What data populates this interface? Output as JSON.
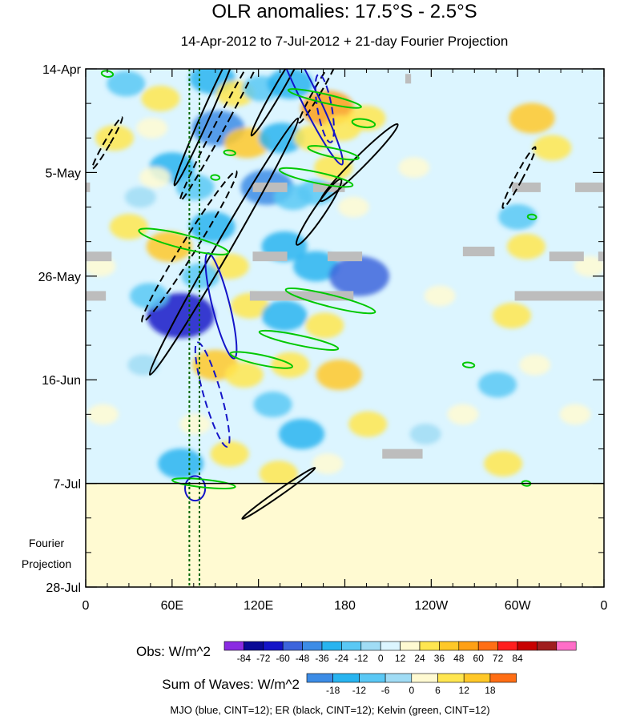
{
  "chart_data": {
    "type": "heatmap",
    "title": "OLR anomalies: 17.5°S - 2.5°S",
    "subtitle": "14-Apr-2012 to 7-Jul-2012 + 21-day Fourier Projection",
    "x_ticks": [
      "0",
      "60E",
      "120E",
      "180",
      "120W",
      "60W",
      "0"
    ],
    "x_tick_values": [
      0,
      60,
      120,
      180,
      240,
      300,
      360
    ],
    "xlim": [
      0,
      360
    ],
    "y_ticks": [
      "14-Apr",
      "5-May",
      "26-May",
      "16-Jun",
      "7-Jul",
      "28-Jul"
    ],
    "y_tick_days": [
      0,
      21,
      42,
      63,
      84,
      105
    ],
    "ylim_days": [
      0,
      105
    ],
    "projection_start_label": "7-Jul",
    "projection_label": [
      "Fourier",
      "Projection"
    ],
    "reference_lines_dotted": [
      72,
      79
    ],
    "obs_colorbar": {
      "label": "Obs: W/m^2",
      "levels": [
        "-84",
        "-72",
        "-60",
        "-48",
        "-36",
        "-24",
        "-12",
        "0",
        "12",
        "24",
        "36",
        "48",
        "60",
        "72",
        "84"
      ],
      "colors": [
        "#8a2be2",
        "#0a0a96",
        "#1414c8",
        "#3c64dc",
        "#3c8ce6",
        "#28b4f0",
        "#5ac8f5",
        "#a0dcf5",
        "#dcf5ff",
        "#fffad2",
        "#ffe650",
        "#ffc828",
        "#ffa014",
        "#ff6e14",
        "#ff1e1e",
        "#c80000",
        "#a01e1e",
        "#ff6ec8"
      ]
    },
    "waves_colorbar": {
      "label": "Sum of Waves: W/m^2",
      "levels": [
        "-18",
        "-12",
        "-6",
        "0",
        "6",
        "12",
        "18"
      ],
      "colors": [
        "#3c8ce6",
        "#28b4f0",
        "#5ac8f5",
        "#a0dcf5",
        "#fffad2",
        "#ffe650",
        "#ffc828",
        "#ff6e14"
      ]
    },
    "contour_legend": "MJO (blue, CINT=12); ER (black, CINT=12); Kelvin (green, CINT=12)",
    "contour_colors": {
      "MJO": "#1414c8",
      "ER": "#000000",
      "Kelvin": "#00c800"
    },
    "anomaly_blobs": [
      {
        "lon": 28,
        "day": 3,
        "v": -24
      },
      {
        "lon": 52,
        "day": 6,
        "v": 24
      },
      {
        "lon": 88,
        "day": 2,
        "v": -36
      },
      {
        "lon": 104,
        "day": 5,
        "v": 24
      },
      {
        "lon": 122,
        "day": 4,
        "v": -24
      },
      {
        "lon": 142,
        "day": 3,
        "v": -36
      },
      {
        "lon": 168,
        "day": 8,
        "v": 48
      },
      {
        "lon": 178,
        "day": 12,
        "v": 24
      },
      {
        "lon": 195,
        "day": 10,
        "v": 24
      },
      {
        "lon": 20,
        "day": 14,
        "v": 24
      },
      {
        "lon": 46,
        "day": 12,
        "v": 12
      },
      {
        "lon": 92,
        "day": 12,
        "v": -48
      },
      {
        "lon": 112,
        "day": 15,
        "v": 36
      },
      {
        "lon": 136,
        "day": 14,
        "v": -36
      },
      {
        "lon": 158,
        "day": 14,
        "v": 24
      },
      {
        "lon": 60,
        "day": 20,
        "v": -36
      },
      {
        "lon": 76,
        "day": 24,
        "v": -24
      },
      {
        "lon": 126,
        "day": 24,
        "v": -48
      },
      {
        "lon": 144,
        "day": 26,
        "v": -24
      },
      {
        "lon": 172,
        "day": 20,
        "v": 24
      },
      {
        "lon": 186,
        "day": 28,
        "v": 12
      },
      {
        "lon": 30,
        "day": 32,
        "v": 24
      },
      {
        "lon": 58,
        "day": 36,
        "v": 36
      },
      {
        "lon": 88,
        "day": 32,
        "v": -36
      },
      {
        "lon": 100,
        "day": 40,
        "v": 24
      },
      {
        "lon": 138,
        "day": 36,
        "v": -36
      },
      {
        "lon": 160,
        "day": 40,
        "v": -36
      },
      {
        "lon": 190,
        "day": 42,
        "v": -60
      },
      {
        "lon": 66,
        "day": 50,
        "v": -72
      },
      {
        "lon": 44,
        "day": 46,
        "v": -24
      },
      {
        "lon": 114,
        "day": 48,
        "v": 24
      },
      {
        "lon": 138,
        "day": 50,
        "v": -36
      },
      {
        "lon": 166,
        "day": 52,
        "v": 24
      },
      {
        "lon": 90,
        "day": 60,
        "v": 36
      },
      {
        "lon": 110,
        "day": 62,
        "v": 24
      },
      {
        "lon": 142,
        "day": 60,
        "v": 24
      },
      {
        "lon": 176,
        "day": 62,
        "v": 36
      },
      {
        "lon": 76,
        "day": 72,
        "v": 12
      },
      {
        "lon": 130,
        "day": 68,
        "v": -24
      },
      {
        "lon": 150,
        "day": 74,
        "v": -36
      },
      {
        "lon": 196,
        "day": 72,
        "v": 24
      },
      {
        "lon": 66,
        "day": 80,
        "v": -36
      },
      {
        "lon": 100,
        "day": 78,
        "v": 24
      },
      {
        "lon": 134,
        "day": 82,
        "v": 24
      },
      {
        "lon": 168,
        "day": 80,
        "v": 12
      },
      {
        "lon": 310,
        "day": 10,
        "v": 36
      },
      {
        "lon": 324,
        "day": 16,
        "v": 24
      },
      {
        "lon": 300,
        "day": 30,
        "v": -24
      },
      {
        "lon": 306,
        "day": 36,
        "v": 24
      },
      {
        "lon": 296,
        "day": 50,
        "v": 24
      },
      {
        "lon": 286,
        "day": 64,
        "v": -24
      },
      {
        "lon": 312,
        "day": 60,
        "v": 12
      },
      {
        "lon": 262,
        "day": 70,
        "v": 12
      },
      {
        "lon": 290,
        "day": 80,
        "v": 24
      },
      {
        "lon": 228,
        "day": 20,
        "v": 12
      },
      {
        "lon": 246,
        "day": 46,
        "v": 12
      },
      {
        "lon": 236,
        "day": 74,
        "v": -12
      },
      {
        "lon": 10,
        "day": 40,
        "v": 12
      },
      {
        "lon": 12,
        "day": 70,
        "v": 12
      },
      {
        "lon": 40,
        "day": 60,
        "v": -12
      },
      {
        "lon": 350,
        "day": 40,
        "v": 12
      },
      {
        "lon": 340,
        "day": 70,
        "v": 12
      },
      {
        "lon": 160,
        "day": 25,
        "v": -24
      },
      {
        "lon": 48,
        "day": 22,
        "v": 12
      },
      {
        "lon": 38,
        "day": 26,
        "v": -12
      },
      {
        "lon": 80,
        "day": 42,
        "v": -24
      },
      {
        "lon": 148,
        "day": 92,
        "v": 12
      },
      {
        "lon": 96,
        "day": 98,
        "v": 6
      },
      {
        "lon": 180,
        "day": 100,
        "v": 6
      }
    ],
    "missing_segments": [
      {
        "lon0": 0,
        "lon1": 3,
        "day": 24
      },
      {
        "lon0": 116,
        "day": 24,
        "lon1": 140
      },
      {
        "lon0": 158,
        "lon1": 180,
        "day": 24
      },
      {
        "lon0": 296,
        "lon1": 316,
        "day": 24
      },
      {
        "lon0": 340,
        "lon1": 360,
        "day": 24
      },
      {
        "lon0": 0,
        "lon1": 18,
        "day": 38
      },
      {
        "lon0": 116,
        "lon1": 140,
        "day": 38
      },
      {
        "lon0": 168,
        "lon1": 192,
        "day": 38
      },
      {
        "lon0": 262,
        "lon1": 284,
        "day": 37
      },
      {
        "lon0": 322,
        "lon1": 346,
        "day": 38
      },
      {
        "lon0": 356,
        "lon1": 360,
        "day": 38
      },
      {
        "lon0": 0,
        "lon1": 14,
        "day": 46
      },
      {
        "lon0": 114,
        "lon1": 186,
        "day": 46
      },
      {
        "lon0": 298,
        "lon1": 360,
        "day": 46
      },
      {
        "lon0": 206,
        "lon1": 234,
        "day": 78
      },
      {
        "lon0": 222,
        "lon1": 226,
        "day": 2
      }
    ],
    "contours": [
      {
        "type": "ER",
        "style": "solid",
        "lon": 84,
        "day": 9,
        "rx": 3,
        "ry": 16,
        "angle": 24
      },
      {
        "type": "ER",
        "style": "dashed",
        "lon": 98,
        "day": 9,
        "rx": 3.5,
        "ry": 20,
        "angle": 28
      },
      {
        "type": "ER",
        "style": "dashed",
        "lon": 15,
        "day": 15,
        "rx": 2,
        "ry": 6,
        "angle": 30
      },
      {
        "type": "ER",
        "style": "solid",
        "lon": 134,
        "day": 4,
        "rx": 3,
        "ry": 11,
        "angle": 30
      },
      {
        "type": "ER",
        "style": "dashed",
        "lon": 162,
        "day": 4,
        "rx": 2.5,
        "ry": 8,
        "angle": 30
      },
      {
        "type": "ER",
        "style": "solid",
        "lon": 190,
        "day": 19,
        "rx": 4,
        "ry": 11,
        "angle": 45
      },
      {
        "type": "ER",
        "style": "solid",
        "lon": 162,
        "day": 29,
        "rx": 4,
        "ry": 8,
        "angle": 34
      },
      {
        "type": "ER",
        "style": "solid",
        "lon": 96,
        "day": 36,
        "rx": 5,
        "ry": 30,
        "angle": 30
      },
      {
        "type": "ER",
        "style": "dashed",
        "lon": 72,
        "day": 36,
        "rx": 5,
        "ry": 18,
        "angle": 32
      },
      {
        "type": "ER",
        "style": "dashed",
        "lon": 301,
        "day": 22,
        "rx": 2.5,
        "ry": 7,
        "angle": 28
      },
      {
        "type": "ER",
        "style": "solid",
        "lon": 134,
        "day": 86,
        "rx": 2,
        "ry": 9,
        "angle": 55
      },
      {
        "type": "MJO",
        "style": "solid",
        "lon": 154,
        "day": 5,
        "rx": 6,
        "ry": 16,
        "angle": -26
      },
      {
        "type": "MJO",
        "style": "dashed",
        "lon": 166,
        "day": 8,
        "rx": 5,
        "ry": 7,
        "angle": -10
      },
      {
        "type": "MJO",
        "style": "solid",
        "lon": 94,
        "day": 48,
        "rx": 6,
        "ry": 11,
        "angle": -14
      },
      {
        "type": "MJO",
        "style": "dashed",
        "lon": 88,
        "day": 66,
        "rx": 6,
        "ry": 11,
        "angle": -16
      },
      {
        "type": "MJO",
        "style": "solid",
        "lon": 76,
        "day": 85,
        "rx": 7,
        "ry": 2.5,
        "angle": 0
      },
      {
        "type": "Kelvin",
        "style": "solid",
        "lon": 166,
        "day": 6,
        "rx": 26,
        "ry": 0.9,
        "angle": 13
      },
      {
        "type": "Kelvin",
        "style": "solid",
        "lon": 193,
        "day": 11,
        "rx": 8,
        "ry": 0.8,
        "angle": 8
      },
      {
        "type": "Kelvin",
        "style": "solid",
        "lon": 172,
        "day": 17,
        "rx": 18,
        "ry": 0.9,
        "angle": 12
      },
      {
        "type": "Kelvin",
        "style": "solid",
        "lon": 160,
        "day": 22,
        "rx": 26,
        "ry": 1.1,
        "angle": 12
      },
      {
        "type": "Kelvin",
        "style": "solid",
        "lon": 68,
        "day": 35,
        "rx": 32,
        "ry": 1.4,
        "angle": 14
      },
      {
        "type": "Kelvin",
        "style": "solid",
        "lon": 170,
        "day": 47,
        "rx": 32,
        "ry": 1.2,
        "angle": 14
      },
      {
        "type": "Kelvin",
        "style": "solid",
        "lon": 148,
        "day": 55,
        "rx": 28,
        "ry": 1.0,
        "angle": 12
      },
      {
        "type": "Kelvin",
        "style": "solid",
        "lon": 122,
        "day": 59,
        "rx": 22,
        "ry": 1.0,
        "angle": 12
      },
      {
        "type": "Kelvin",
        "style": "solid",
        "lon": 82,
        "day": 84,
        "rx": 22,
        "ry": 0.8,
        "angle": 6
      },
      {
        "type": "Kelvin",
        "style": "solid",
        "lon": 15,
        "day": 1,
        "rx": 4,
        "ry": 0.6,
        "angle": 8
      },
      {
        "type": "Kelvin",
        "style": "solid",
        "lon": 90,
        "day": 22,
        "rx": 3,
        "ry": 0.5,
        "angle": 6
      },
      {
        "type": "Kelvin",
        "style": "solid",
        "lon": 100,
        "day": 17,
        "rx": 4,
        "ry": 0.5,
        "angle": 6
      },
      {
        "type": "Kelvin",
        "style": "solid",
        "lon": 310,
        "day": 30,
        "rx": 3,
        "ry": 0.5,
        "angle": 6
      },
      {
        "type": "Kelvin",
        "style": "solid",
        "lon": 266,
        "day": 60,
        "rx": 4,
        "ry": 0.5,
        "angle": 6
      },
      {
        "type": "Kelvin",
        "style": "solid",
        "lon": 306,
        "day": 84,
        "rx": 3,
        "ry": 0.5,
        "angle": 6
      }
    ]
  }
}
